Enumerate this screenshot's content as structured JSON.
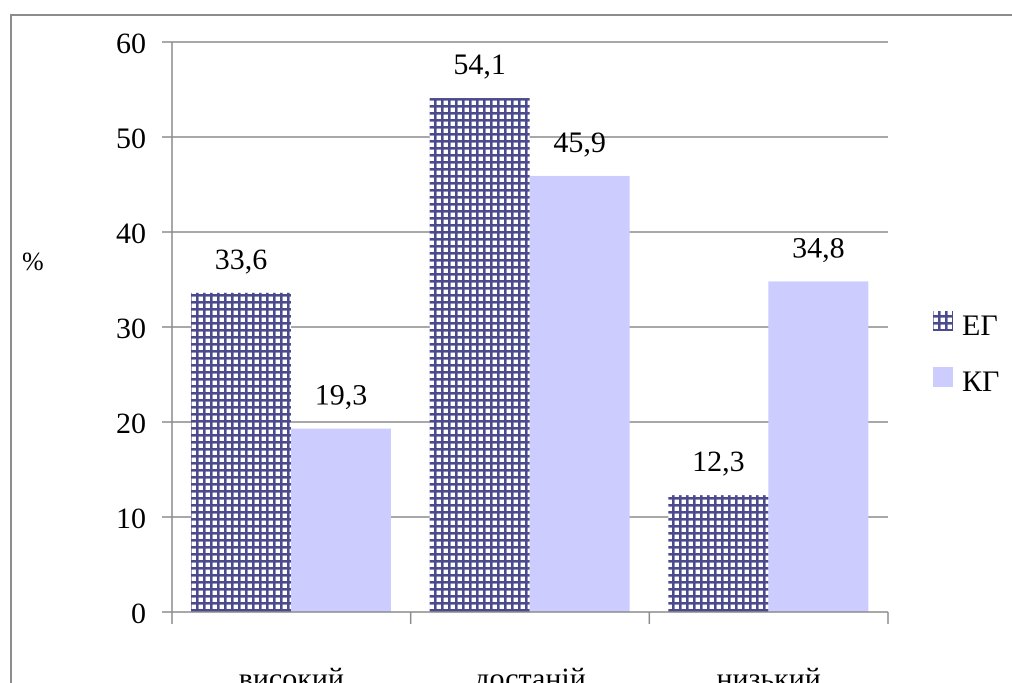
{
  "chart_data": {
    "type": "bar",
    "categories": [
      "високий",
      "достаній",
      "низький"
    ],
    "series": [
      {
        "name": "ЕГ",
        "values": [
          33.6,
          54.1,
          12.3
        ],
        "labels": [
          "33,6",
          "54,1",
          "12,3"
        ],
        "pattern": "grid",
        "color": "#4a4a8c"
      },
      {
        "name": "КГ",
        "values": [
          19.3,
          45.9,
          34.8
        ],
        "labels": [
          "19,3",
          "45,9",
          "34,8"
        ],
        "pattern": "solid",
        "color": "#ccccff"
      }
    ],
    "ylabel": "%",
    "ylim": [
      0,
      60
    ],
    "yticks": [
      "0",
      "10",
      "20",
      "30",
      "40",
      "50",
      "60"
    ],
    "grid": true,
    "legend_position": "right"
  }
}
